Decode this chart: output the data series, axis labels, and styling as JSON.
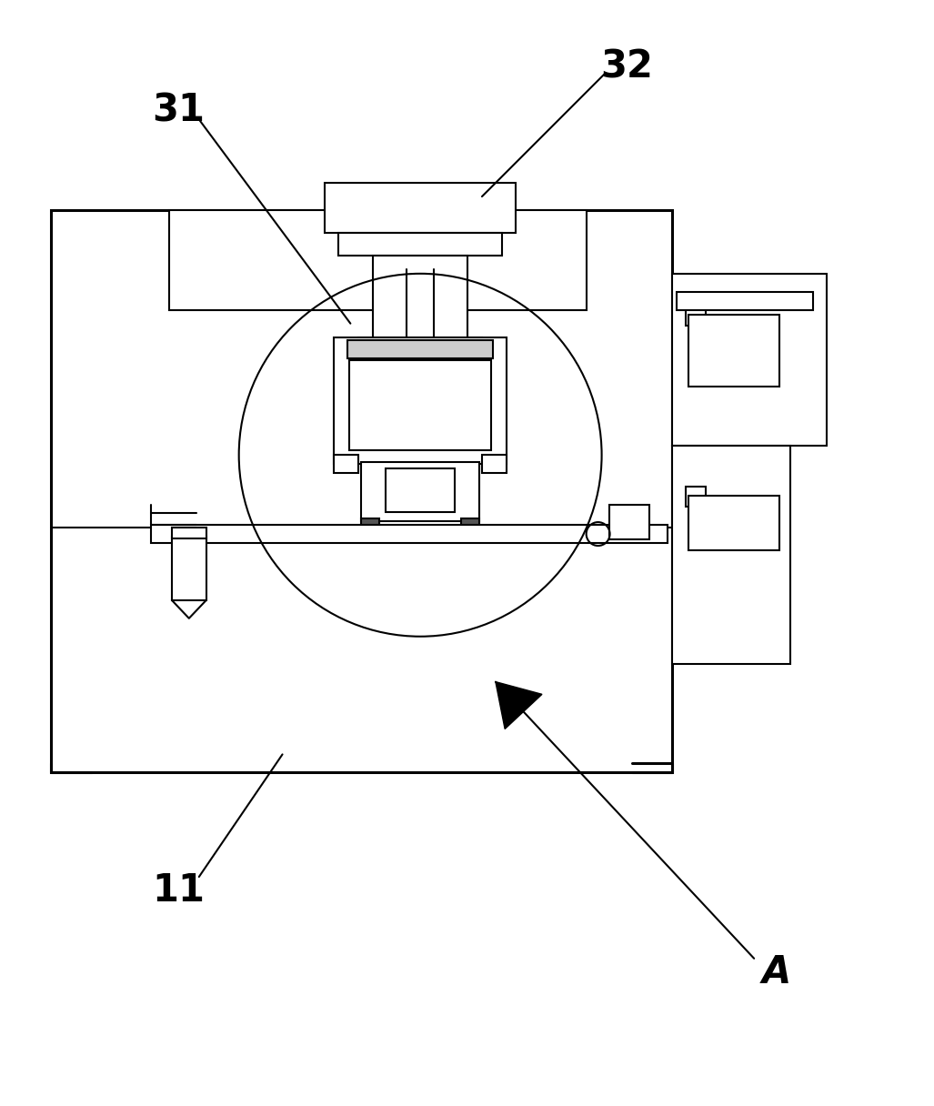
{
  "bg_color": "#ffffff",
  "lc": "#000000",
  "lw": 1.5,
  "tlw": 2.2,
  "fig_width": 10.27,
  "fig_height": 12.16
}
